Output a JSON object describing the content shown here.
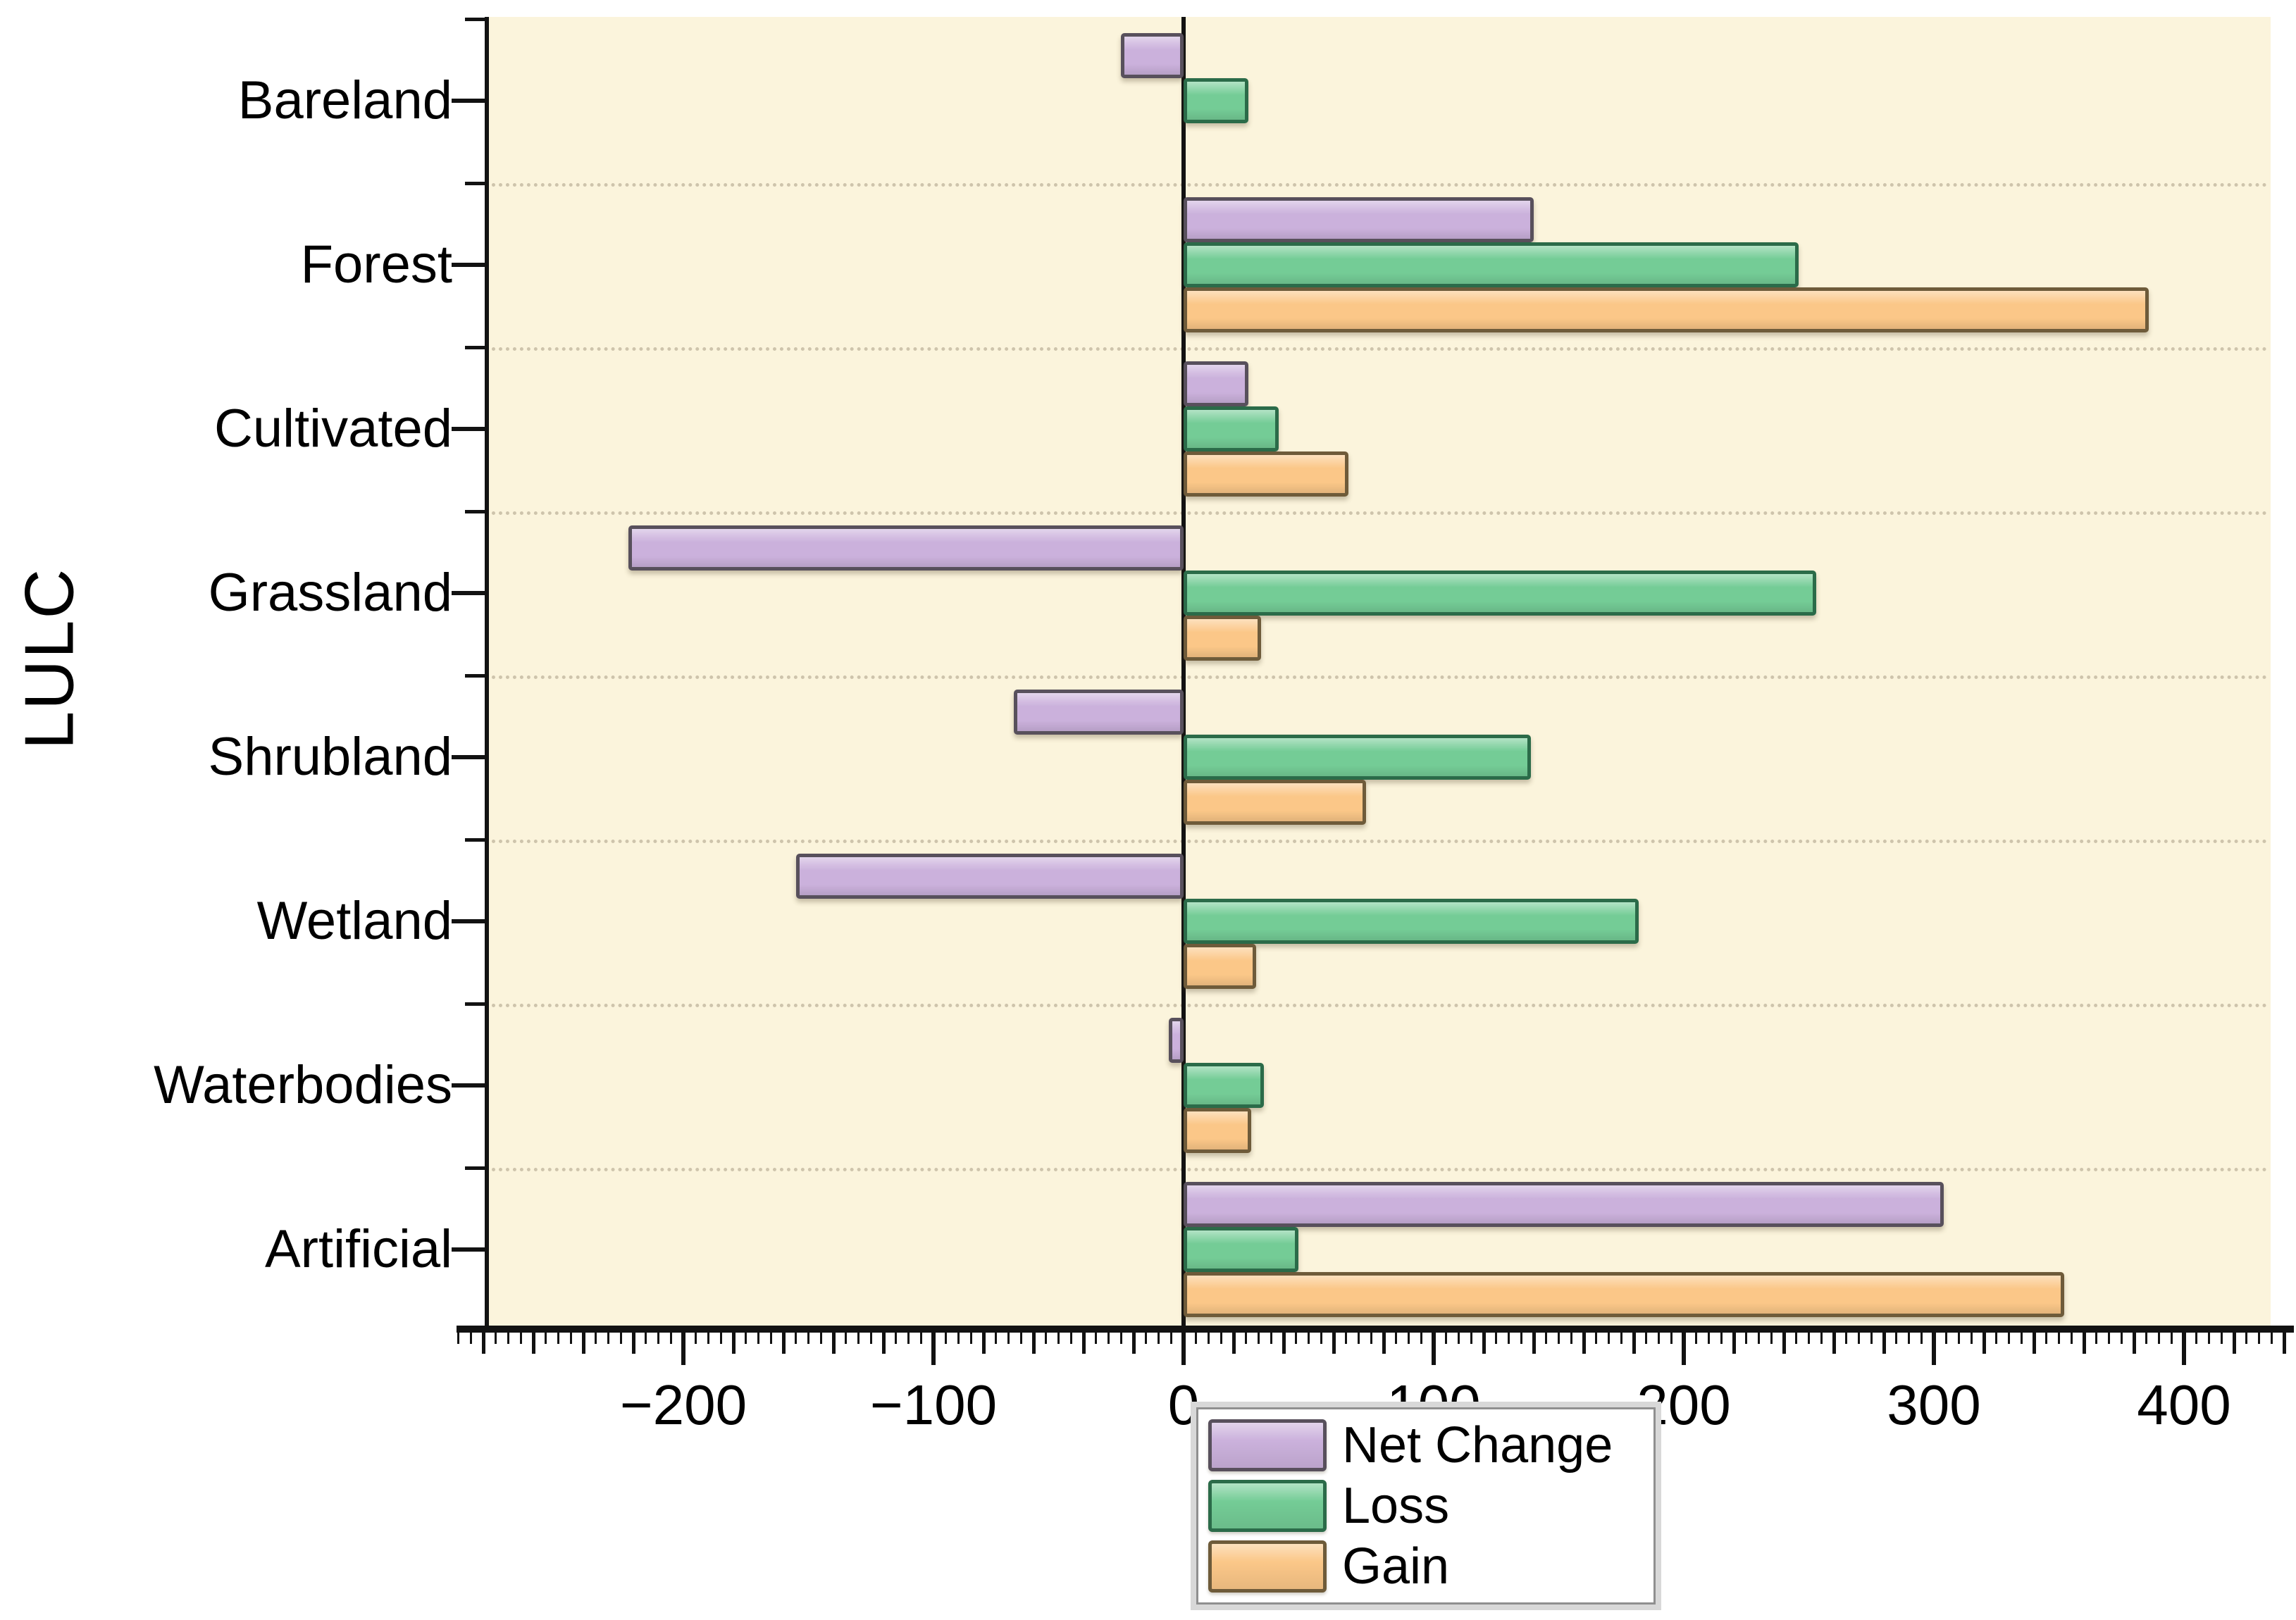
{
  "chart_data": {
    "type": "bar",
    "orientation": "horizontal",
    "title": "",
    "xlabel": "",
    "ylabel": "LULC",
    "categories": [
      "Bareland",
      "Forest",
      "Cultivated",
      "Grassland",
      "Shrubland",
      "Wetland",
      "Waterbodies",
      "Artificial"
    ],
    "series": [
      {
        "name": "Net Change",
        "fill": "#CBB1DC",
        "border": "#58505C",
        "values": [
          -25,
          140,
          26,
          -222,
          -68,
          -155,
          -6,
          304
        ]
      },
      {
        "name": "Loss",
        "fill": "#74CC96",
        "border": "#2B6B49",
        "values": [
          26,
          246,
          38,
          253,
          139,
          182,
          32,
          46
        ]
      },
      {
        "name": "Gain",
        "fill": "#FBC788",
        "border": "#6E5B3A",
        "values": [
          0,
          386,
          66,
          31,
          73,
          29,
          27,
          352
        ]
      }
    ],
    "x_axis": {
      "range": [
        -278,
        434
      ],
      "major_ticks": [
        {
          "value": -200,
          "label": "−200"
        },
        {
          "value": -100,
          "label": "−100"
        },
        {
          "value": 0,
          "label": "0"
        },
        {
          "value": 100,
          "label": "100"
        },
        {
          "value": 200,
          "label": "200"
        },
        {
          "value": 300,
          "label": "300"
        },
        {
          "value": 400,
          "label": "400"
        }
      ],
      "minor_tick_step": 20,
      "fine_tick_step": 5
    },
    "legend": {
      "position": "bottom-center",
      "items": [
        "Net Change",
        "Loss",
        "Gain"
      ]
    },
    "layout_hints": {
      "plot_background": "#FBF4DC",
      "grid": "dotted horizontal lines between category bands",
      "zero_line": true,
      "bar_order_top_to_bottom": [
        "Net Change",
        "Loss",
        "Gain"
      ]
    }
  }
}
